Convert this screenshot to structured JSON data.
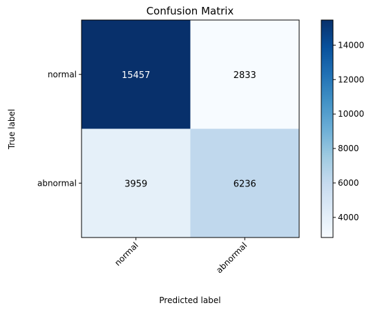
{
  "chart_data": {
    "type": "heatmap",
    "title": "Confusion Matrix",
    "xlabel": "Predicted label",
    "ylabel": "True label",
    "x_categories": [
      "normal",
      "abnormal"
    ],
    "y_categories": [
      "normal",
      "abnormal"
    ],
    "values": [
      [
        15457,
        2833
      ],
      [
        3959,
        6236
      ]
    ],
    "colormap": "Blues",
    "color_low": "#f7fbff",
    "color_high": "#08306b",
    "colorbar": {
      "range": [
        2833,
        15457
      ],
      "ticks": [
        4000,
        6000,
        8000,
        10000,
        12000,
        14000
      ],
      "tick_labels": [
        "4000",
        "6000",
        "8000",
        "10000",
        "12000",
        "14000"
      ]
    },
    "grid": false
  }
}
